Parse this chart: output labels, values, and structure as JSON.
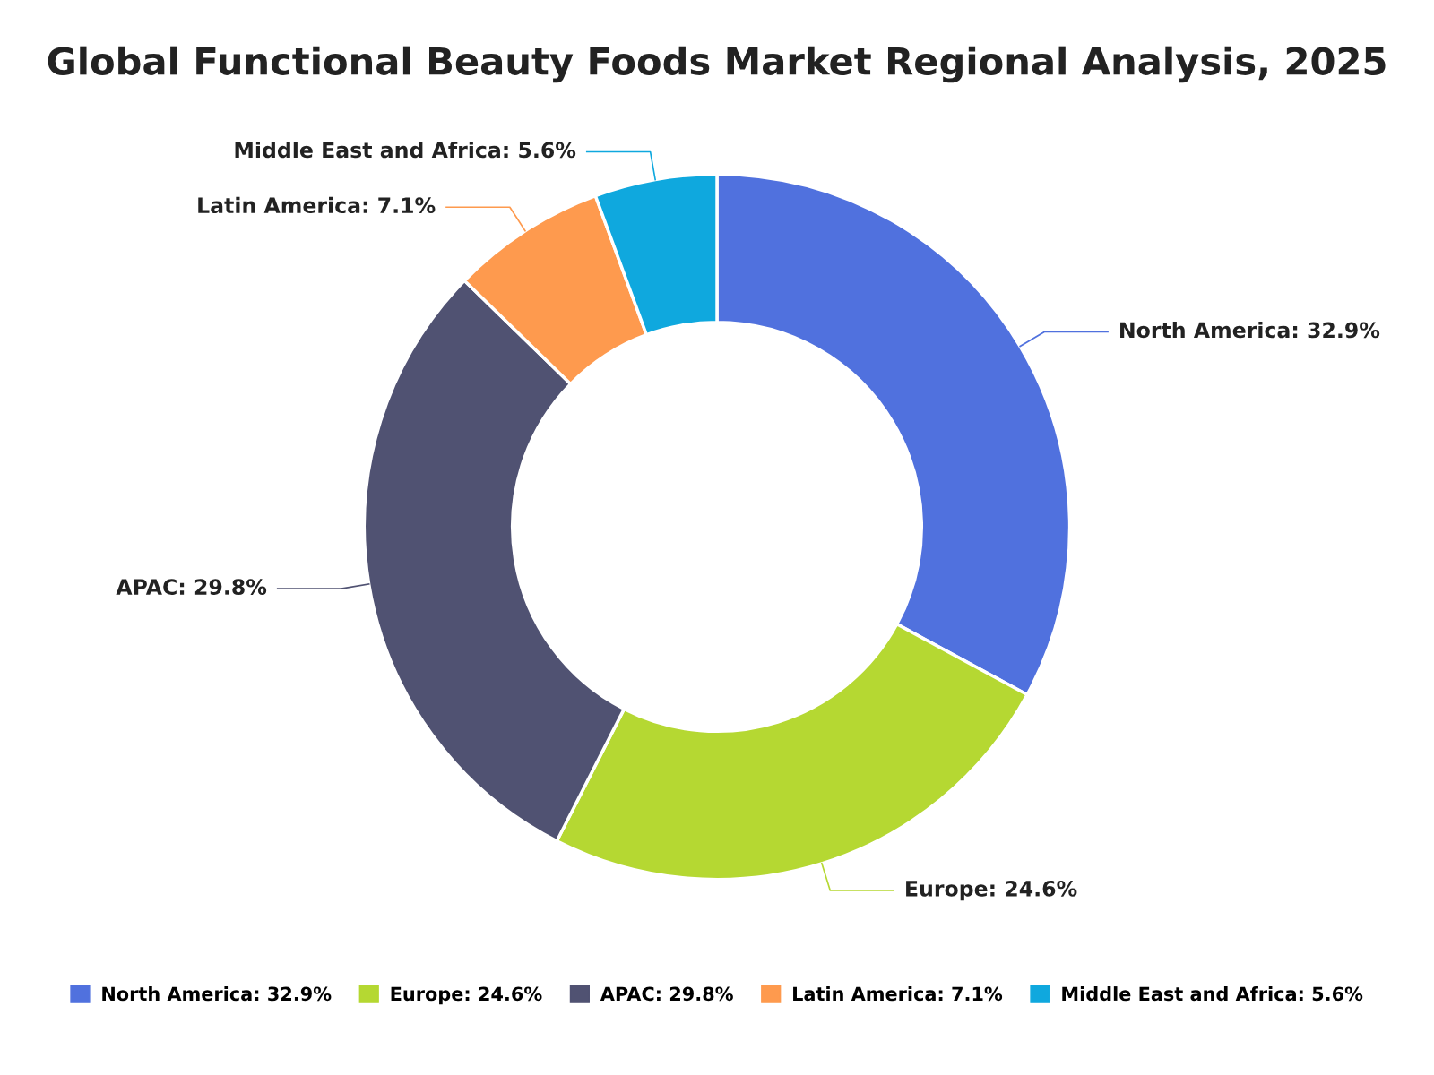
{
  "chart_data": {
    "type": "donut",
    "title": "Global Functional Beauty Foods Market Regional Analysis, 2025",
    "categories": [
      "North America: 32.9%",
      "Europe: 24.6%",
      "APAC: 29.8%",
      "Latin America: 7.1%",
      "Middle East and Africa: 5.6%"
    ],
    "values": [
      32.9,
      24.6,
      29.8,
      7.1,
      5.6
    ],
    "colors": [
      "#5071de",
      "#b5d832",
      "#505272",
      "#fe9a4e",
      "#0fa8de"
    ],
    "legend": "bottom"
  }
}
